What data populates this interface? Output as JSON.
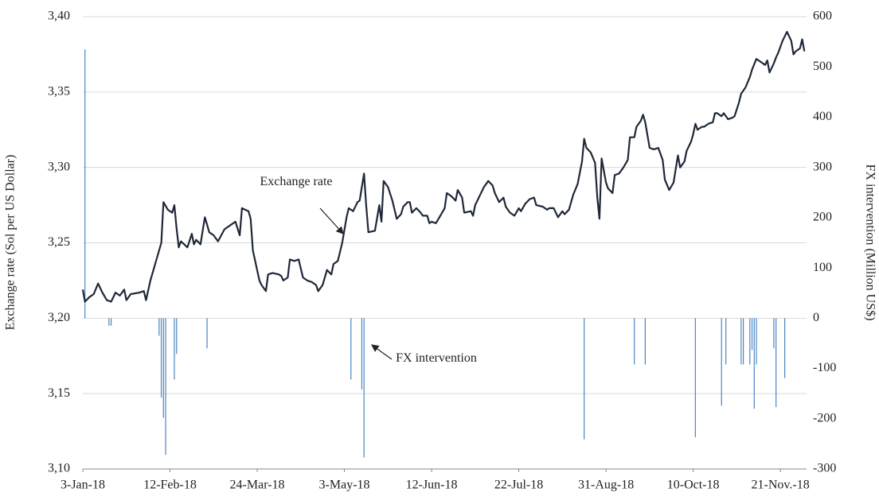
{
  "chart_data": {
    "type": "combo",
    "ylabel": "Exchange rate (Sol per US Dollar)",
    "y2label": "FX intervention (Million US$)",
    "xlim": [
      0,
      332
    ],
    "xticks": [
      {
        "value": 0,
        "label": "3-Jan-18"
      },
      {
        "value": 40,
        "label": "12-Feb-18"
      },
      {
        "value": 80,
        "label": "24-Mar-18"
      },
      {
        "value": 120,
        "label": "3-May-18"
      },
      {
        "value": 160,
        "label": "12-Jun-18"
      },
      {
        "value": 200,
        "label": "22-Jul-18"
      },
      {
        "value": 240,
        "label": "31-Aug-18"
      },
      {
        "value": 280,
        "label": "10-Oct-18"
      },
      {
        "value": 320,
        "label": "21-Nov.-18"
      }
    ],
    "ylim": [
      3.1,
      3.4
    ],
    "yticks": [
      {
        "value": 3.1,
        "label": "3,10"
      },
      {
        "value": 3.15,
        "label": "3,15"
      },
      {
        "value": 3.2,
        "label": "3,20"
      },
      {
        "value": 3.25,
        "label": "3,25"
      },
      {
        "value": 3.3,
        "label": "3,30"
      },
      {
        "value": 3.35,
        "label": "3,35"
      },
      {
        "value": 3.4,
        "label": "3,40"
      }
    ],
    "y2lim": [
      -300,
      600
    ],
    "y2ticks": [
      -300,
      -200,
      -100,
      0,
      100,
      200,
      300,
      400,
      500,
      600
    ],
    "grid": true,
    "series": [
      {
        "name": "Exchange rate",
        "type": "line",
        "color": "#1f2838",
        "x": [
          0,
          1,
          3,
          5,
          7,
          9,
          11,
          13,
          15,
          17,
          19,
          20,
          22,
          26,
          28,
          29,
          31,
          34,
          36,
          37,
          39,
          41,
          42,
          43,
          44,
          45,
          48,
          50,
          51,
          52,
          54,
          56,
          57,
          58,
          60,
          62,
          65,
          68,
          70,
          72,
          73,
          76,
          77,
          78,
          81,
          82,
          84,
          85,
          87,
          90,
          91,
          92,
          94,
          95,
          97,
          99,
          101,
          103,
          105,
          107,
          108,
          110,
          112,
          114,
          115,
          117,
          119,
          121,
          122,
          124,
          126,
          127,
          129,
          130,
          131,
          134,
          136,
          137,
          138,
          140,
          142,
          144,
          146,
          147,
          149,
          150,
          151,
          153,
          155,
          156,
          158,
          159,
          160,
          162,
          164,
          166,
          167,
          169,
          171,
          172,
          174,
          175,
          178,
          179,
          180,
          182,
          184,
          186,
          188,
          189,
          191,
          193,
          194,
          196,
          198,
          200,
          201,
          203,
          205,
          207,
          208,
          211,
          213,
          214,
          216,
          218,
          220,
          221,
          223,
          225,
          227,
          229,
          230,
          231,
          233,
          235,
          236,
          237,
          238,
          240,
          241,
          243,
          244,
          246,
          248,
          250,
          251,
          253,
          254,
          256,
          257,
          258,
          260,
          262,
          264,
          266,
          267,
          269,
          271,
          272,
          273,
          274,
          276,
          277,
          279,
          280,
          281,
          282,
          284,
          285,
          287,
          289,
          290,
          291,
          293,
          294,
          296,
          298,
          299,
          301,
          302,
          304,
          306,
          307,
          309,
          311,
          313,
          314,
          315,
          317,
          318,
          319,
          321,
          323,
          325,
          326,
          327,
          329,
          330,
          331
        ],
        "values": [
          3.219,
          3.211,
          3.214,
          3.216,
          3.223,
          3.217,
          3.212,
          3.211,
          3.217,
          3.215,
          3.219,
          3.212,
          3.216,
          3.217,
          3.218,
          3.212,
          3.225,
          3.24,
          3.25,
          3.277,
          3.272,
          3.27,
          3.275,
          3.26,
          3.247,
          3.251,
          3.247,
          3.256,
          3.249,
          3.252,
          3.249,
          3.267,
          3.262,
          3.257,
          3.255,
          3.251,
          3.259,
          3.262,
          3.264,
          3.255,
          3.273,
          3.271,
          3.266,
          3.245,
          3.225,
          3.222,
          3.218,
          3.229,
          3.23,
          3.229,
          3.228,
          3.225,
          3.227,
          3.239,
          3.238,
          3.239,
          3.227,
          3.225,
          3.224,
          3.222,
          3.218,
          3.222,
          3.232,
          3.229,
          3.236,
          3.238,
          3.25,
          3.267,
          3.273,
          3.271,
          3.277,
          3.278,
          3.296,
          3.275,
          3.257,
          3.258,
          3.275,
          3.264,
          3.291,
          3.287,
          3.278,
          3.266,
          3.269,
          3.274,
          3.277,
          3.277,
          3.27,
          3.273,
          3.27,
          3.268,
          3.268,
          3.263,
          3.264,
          3.263,
          3.268,
          3.273,
          3.283,
          3.281,
          3.278,
          3.285,
          3.28,
          3.27,
          3.271,
          3.268,
          3.275,
          3.281,
          3.287,
          3.291,
          3.288,
          3.283,
          3.277,
          3.28,
          3.274,
          3.27,
          3.268,
          3.273,
          3.271,
          3.276,
          3.279,
          3.28,
          3.275,
          3.274,
          3.272,
          3.273,
          3.273,
          3.267,
          3.271,
          3.269,
          3.272,
          3.282,
          3.289,
          3.304,
          3.319,
          3.313,
          3.31,
          3.303,
          3.28,
          3.266,
          3.306,
          3.29,
          3.286,
          3.283,
          3.295,
          3.296,
          3.3,
          3.305,
          3.32,
          3.32,
          3.327,
          3.331,
          3.335,
          3.33,
          3.313,
          3.312,
          3.313,
          3.305,
          3.292,
          3.285,
          3.29,
          3.299,
          3.308,
          3.3,
          3.304,
          3.311,
          3.317,
          3.322,
          3.329,
          3.325,
          3.327,
          3.327,
          3.329,
          3.33,
          3.336,
          3.336,
          3.334,
          3.336,
          3.332,
          3.333,
          3.334,
          3.343,
          3.349,
          3.353,
          3.36,
          3.365,
          3.372,
          3.37,
          3.368,
          3.371,
          3.363,
          3.369,
          3.373,
          3.376,
          3.384,
          3.39,
          3.384,
          3.375,
          3.377,
          3.379,
          3.385,
          3.377
        ]
      },
      {
        "name": "FX intervention",
        "type": "bar",
        "axis": "y2",
        "color": "#4a86c5",
        "x": [
          1,
          12,
          13,
          35,
          36,
          37,
          38,
          42,
          43,
          57,
          123,
          128,
          129,
          230,
          253,
          258,
          281,
          293,
          295,
          302,
          303,
          306,
          307,
          308,
          309,
          317,
          318,
          322
        ],
        "values": [
          535,
          -15,
          -15,
          -35,
          -158,
          -198,
          -272,
          -122,
          -71,
          -60,
          -122,
          -142,
          -277,
          -241,
          -92,
          -92,
          -237,
          -174,
          -92,
          -92,
          -92,
          -92,
          -63,
          -180,
          -92,
          -60,
          -177,
          -119
        ]
      }
    ]
  }
}
